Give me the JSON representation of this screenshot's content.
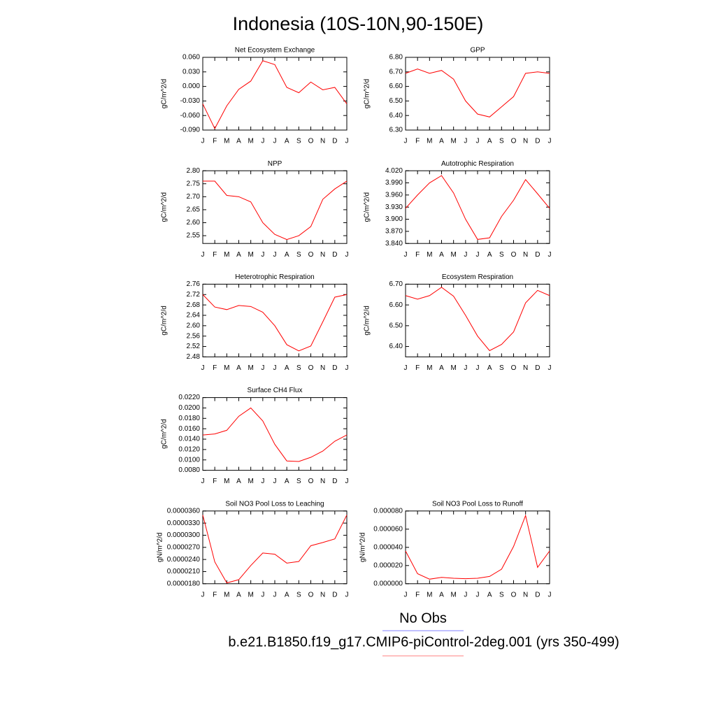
{
  "title": "Indonesia (10S-10N,90-150E)",
  "legend": [
    {
      "name": "No Obs",
      "color": "#8080ff"
    },
    {
      "name": "b.e21.B1850.f19_g17.CMIP6-piControl-2deg.001 (yrs 350-499)",
      "color": "#ff8080"
    }
  ],
  "chart_data": [
    {
      "type": "line",
      "title": "Net Ecosystem Exchange",
      "y_label": "gC/m^2/d",
      "color": "#ff0000",
      "categories": [
        "J",
        "F",
        "M",
        "A",
        "M",
        "J",
        "J",
        "A",
        "S",
        "O",
        "N",
        "D",
        "J"
      ],
      "values": [
        -0.036,
        -0.087,
        -0.04,
        -0.006,
        0.011,
        0.053,
        0.045,
        -0.002,
        -0.013,
        0.009,
        -0.007,
        -0.002,
        -0.036
      ],
      "ylim": [
        -0.09,
        0.06
      ],
      "yticks": [
        {
          "value": -0.09,
          "label": "-0.090"
        },
        {
          "value": -0.06,
          "label": "-0.060"
        },
        {
          "value": -0.03,
          "label": "-0.030"
        },
        {
          "value": 0,
          "label": "0.000"
        },
        {
          "value": 0.03,
          "label": "0.030"
        },
        {
          "value": 0.06,
          "label": "0.060"
        }
      ]
    },
    {
      "type": "line",
      "title": "GPP",
      "y_label": "gC/m^2/d",
      "color": "#ff0000",
      "categories": [
        "J",
        "F",
        "M",
        "A",
        "M",
        "J",
        "J",
        "A",
        "S",
        "O",
        "N",
        "D",
        "J"
      ],
      "values": [
        6.69,
        6.72,
        6.69,
        6.71,
        6.65,
        6.5,
        6.41,
        6.39,
        6.46,
        6.53,
        6.69,
        6.7,
        6.69
      ],
      "ylim": [
        6.3,
        6.8
      ],
      "yticks": [
        {
          "value": 6.3,
          "label": "6.30"
        },
        {
          "value": 6.4,
          "label": "6.40"
        },
        {
          "value": 6.5,
          "label": "6.50"
        },
        {
          "value": 6.6,
          "label": "6.60"
        },
        {
          "value": 6.7,
          "label": "6.70"
        },
        {
          "value": 6.8,
          "label": "6.80"
        }
      ]
    },
    {
      "type": "line",
      "title": "NPP",
      "y_label": "gC/m^2/d",
      "color": "#ff0000",
      "categories": [
        "J",
        "F",
        "M",
        "A",
        "M",
        "J",
        "J",
        "A",
        "S",
        "O",
        "N",
        "D",
        "J"
      ],
      "values": [
        2.76,
        2.76,
        2.705,
        2.7,
        2.68,
        2.6,
        2.555,
        2.535,
        2.55,
        2.585,
        2.69,
        2.73,
        2.76
      ],
      "ylim": [
        2.52,
        2.8
      ],
      "yticks": [
        2.55,
        {
          "value": 2.6,
          "label": "2.60"
        },
        2.65,
        {
          "value": 2.7,
          "label": "2.70"
        },
        2.75,
        {
          "value": 2.8,
          "label": "2.80"
        }
      ]
    },
    {
      "type": "line",
      "title": "Autotrophic Respiration",
      "y_label": "gC/m^2/d",
      "color": "#ff0000",
      "categories": [
        "J",
        "F",
        "M",
        "A",
        "M",
        "J",
        "J",
        "A",
        "S",
        "O",
        "N",
        "D",
        "J"
      ],
      "values": [
        3.927,
        3.96,
        3.99,
        4.008,
        3.965,
        3.9,
        3.85,
        3.854,
        3.907,
        3.947,
        3.998,
        3.963,
        3.927
      ],
      "ylim": [
        3.84,
        4.02
      ],
      "yticks": [
        {
          "value": 3.84,
          "label": "3.840"
        },
        {
          "value": 3.87,
          "label": "3.870"
        },
        {
          "value": 3.9,
          "label": "3.900"
        },
        {
          "value": 3.93,
          "label": "3.930"
        },
        {
          "value": 3.96,
          "label": "3.960"
        },
        {
          "value": 3.99,
          "label": "3.990"
        },
        {
          "value": 4.02,
          "label": "4.020"
        }
      ]
    },
    {
      "type": "line",
      "title": "Heterotrophic Respiration",
      "y_label": "gC/m^2/d",
      "color": "#ff0000",
      "categories": [
        "J",
        "F",
        "M",
        "A",
        "M",
        "J",
        "J",
        "A",
        "S",
        "O",
        "N",
        "D",
        "J"
      ],
      "values": [
        2.72,
        2.672,
        2.662,
        2.678,
        2.674,
        2.652,
        2.6,
        2.527,
        2.503,
        2.522,
        2.615,
        2.71,
        2.72
      ],
      "ylim": [
        2.48,
        2.76
      ],
      "yticks": [
        2.48,
        2.52,
        2.56,
        {
          "value": 2.6,
          "label": "2.60"
        },
        2.64,
        2.68,
        2.72,
        2.76
      ]
    },
    {
      "type": "line",
      "title": "Ecosystem Respiration",
      "y_label": "gC/m^2/d",
      "color": "#ff0000",
      "categories": [
        "J",
        "F",
        "M",
        "A",
        "M",
        "J",
        "J",
        "A",
        "S",
        "O",
        "N",
        "D",
        "J"
      ],
      "values": [
        6.645,
        6.628,
        6.645,
        6.685,
        6.642,
        6.55,
        6.45,
        6.38,
        6.41,
        6.47,
        6.61,
        6.67,
        6.645
      ],
      "ylim": [
        6.35,
        6.7
      ],
      "yticks": [
        {
          "value": 6.4,
          "label": "6.40"
        },
        {
          "value": 6.5,
          "label": "6.50"
        },
        {
          "value": 6.6,
          "label": "6.60"
        },
        {
          "value": 6.7,
          "label": "6.70"
        }
      ]
    },
    {
      "type": "line",
      "title": "Surface CH4 Flux",
      "y_label": "gC/m^2/d",
      "color": "#ff0000",
      "categories": [
        "J",
        "F",
        "M",
        "A",
        "M",
        "J",
        "J",
        "A",
        "S",
        "O",
        "N",
        "D",
        "J"
      ],
      "values": [
        0.0148,
        0.015,
        0.0157,
        0.0184,
        0.02,
        0.0175,
        0.013,
        0.0098,
        0.0097,
        0.0105,
        0.0117,
        0.0136,
        0.0148
      ],
      "ylim": [
        0.008,
        0.022
      ],
      "yticks": [
        {
          "value": 0.008,
          "label": "0.0080"
        },
        {
          "value": 0.01,
          "label": "0.0100"
        },
        {
          "value": 0.012,
          "label": "0.0120"
        },
        {
          "value": 0.014,
          "label": "0.0140"
        },
        {
          "value": 0.016,
          "label": "0.0160"
        },
        {
          "value": 0.018,
          "label": "0.0180"
        },
        {
          "value": 0.02,
          "label": "0.0200"
        },
        {
          "value": 0.022,
          "label": "0.0220"
        }
      ]
    },
    {
      "type": "line",
      "title": "Soil NO3 Pool Loss to Leaching",
      "y_label": "gN/m^2/d",
      "color": "#ff0000",
      "categories": [
        "J",
        "F",
        "M",
        "A",
        "M",
        "J",
        "J",
        "A",
        "S",
        "O",
        "N",
        "D",
        "J"
      ],
      "values": [
        3.5e-05,
        2.34e-05,
        1.82e-05,
        1.9e-05,
        2.25e-05,
        2.56e-05,
        2.53e-05,
        2.31e-05,
        2.35e-05,
        2.74e-05,
        2.82e-05,
        2.91e-05,
        3.5e-05
      ],
      "ylim": [
        1.8e-05,
        3.6e-05
      ],
      "yticks": [
        {
          "value": 1.8e-05,
          "label": "0.0000180"
        },
        {
          "value": 2.1e-05,
          "label": "0.0000210"
        },
        {
          "value": 2.4e-05,
          "label": "0.0000240"
        },
        {
          "value": 2.7e-05,
          "label": "0.0000270"
        },
        {
          "value": 3e-05,
          "label": "0.0000300"
        },
        {
          "value": 3.3e-05,
          "label": "0.0000330"
        },
        {
          "value": 3.6e-05,
          "label": "0.0000360"
        }
      ]
    },
    {
      "type": "line",
      "title": "Soil NO3 Pool Loss to Runoff",
      "y_label": "gN/m^2/d",
      "color": "#ff0000",
      "categories": [
        "J",
        "F",
        "M",
        "A",
        "M",
        "J",
        "J",
        "A",
        "S",
        "O",
        "N",
        "D",
        "J"
      ],
      "values": [
        3.6e-05,
        1.1e-05,
        5e-06,
        7e-06,
        6e-06,
        5.5e-06,
        6e-06,
        8e-06,
        1.6e-05,
        4.1e-05,
        7.5e-05,
        1.8e-05,
        3.6e-05
      ],
      "ylim": [
        0,
        8e-05
      ],
      "yticks": [
        {
          "value": 0,
          "label": "0.000000"
        },
        {
          "value": 2e-05,
          "label": "0.000020"
        },
        {
          "value": 4e-05,
          "label": "0.000040"
        },
        {
          "value": 6e-05,
          "label": "0.000060"
        },
        {
          "value": 8e-05,
          "label": "0.000080"
        }
      ]
    }
  ]
}
